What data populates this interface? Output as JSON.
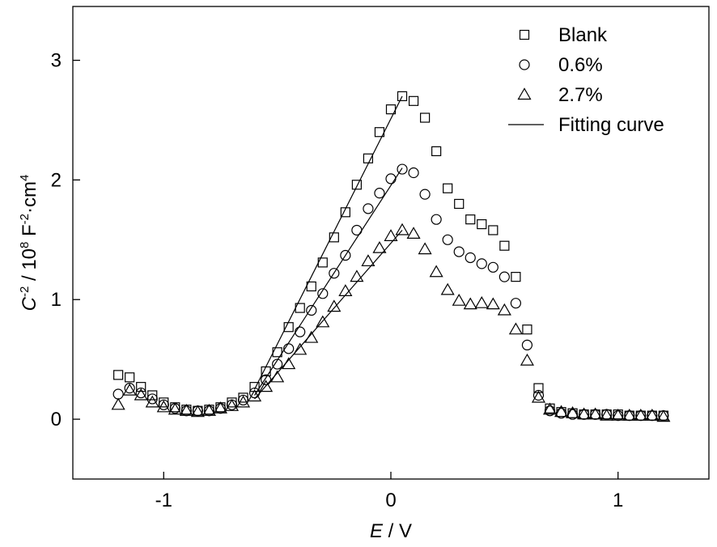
{
  "chart_data": {
    "type": "scatter",
    "title": "",
    "xlabel": {
      "italic": "E",
      "rest": " / V"
    },
    "ylabel": {
      "italic": "C",
      "sup1": "-2",
      "mid": " / 10",
      "sup2": "8",
      "mid2": " F",
      "sup3": "-2",
      "tail": "·cm",
      "sup4": "4"
    },
    "xlim": [
      -1.4,
      1.4
    ],
    "ylim": [
      -0.5,
      3.45
    ],
    "xticks": [
      -1,
      0,
      1
    ],
    "xtick_labels": [
      "-1",
      "0",
      "1"
    ],
    "yticks": [
      0,
      1,
      2,
      3
    ],
    "ytick_labels": [
      "0",
      "1",
      "2",
      "3"
    ],
    "grid": false,
    "legend_position": "top-right",
    "series": [
      {
        "name": "Blank",
        "marker": "square",
        "x": [
          -1.2,
          -1.15,
          -1.1,
          -1.05,
          -1.0,
          -0.95,
          -0.9,
          -0.85,
          -0.8,
          -0.75,
          -0.7,
          -0.65,
          -0.6,
          -0.55,
          -0.5,
          -0.45,
          -0.4,
          -0.35,
          -0.3,
          -0.25,
          -0.2,
          -0.15,
          -0.1,
          -0.05,
          0.0,
          0.05,
          0.1,
          0.15,
          0.2,
          0.25,
          0.3,
          0.35,
          0.4,
          0.45,
          0.5,
          0.55,
          0.6,
          0.65,
          0.7,
          0.75,
          0.8,
          0.85,
          0.9,
          0.95,
          1.0,
          1.05,
          1.1,
          1.15,
          1.2
        ],
        "y": [
          0.37,
          0.35,
          0.27,
          0.2,
          0.14,
          0.1,
          0.08,
          0.07,
          0.08,
          0.1,
          0.14,
          0.18,
          0.27,
          0.4,
          0.56,
          0.77,
          0.93,
          1.11,
          1.31,
          1.52,
          1.73,
          1.96,
          2.18,
          2.4,
          2.59,
          2.7,
          2.66,
          2.52,
          2.24,
          1.93,
          1.8,
          1.67,
          1.63,
          1.58,
          1.45,
          1.19,
          0.75,
          0.26,
          0.09,
          0.06,
          0.05,
          0.04,
          0.04,
          0.04,
          0.04,
          0.03,
          0.03,
          0.03,
          0.03
        ]
      },
      {
        "name": "0.6%",
        "marker": "circle",
        "x": [
          -1.2,
          -1.15,
          -1.1,
          -1.05,
          -1.0,
          -0.95,
          -0.9,
          -0.85,
          -0.8,
          -0.75,
          -0.7,
          -0.65,
          -0.6,
          -0.55,
          -0.5,
          -0.45,
          -0.4,
          -0.35,
          -0.3,
          -0.25,
          -0.2,
          -0.15,
          -0.1,
          -0.05,
          0.0,
          0.05,
          0.1,
          0.15,
          0.2,
          0.25,
          0.3,
          0.35,
          0.4,
          0.45,
          0.5,
          0.55,
          0.6,
          0.65,
          0.7,
          0.75,
          0.8,
          0.85,
          0.9,
          0.95,
          1.0,
          1.05,
          1.1,
          1.15,
          1.2
        ],
        "y": [
          0.21,
          0.26,
          0.22,
          0.17,
          0.12,
          0.09,
          0.07,
          0.07,
          0.07,
          0.09,
          0.12,
          0.16,
          0.22,
          0.33,
          0.46,
          0.59,
          0.73,
          0.91,
          1.05,
          1.22,
          1.37,
          1.58,
          1.76,
          1.89,
          2.01,
          2.09,
          2.06,
          1.88,
          1.67,
          1.5,
          1.4,
          1.35,
          1.3,
          1.27,
          1.19,
          0.97,
          0.62,
          0.2,
          0.07,
          0.05,
          0.04,
          0.04,
          0.04,
          0.04,
          0.03,
          0.03,
          0.03,
          0.03,
          0.03
        ]
      },
      {
        "name": "2.7%",
        "marker": "triangle",
        "x": [
          -1.2,
          -1.15,
          -1.1,
          -1.05,
          -1.0,
          -0.95,
          -0.9,
          -0.85,
          -0.8,
          -0.75,
          -0.7,
          -0.65,
          -0.6,
          -0.55,
          -0.5,
          -0.45,
          -0.4,
          -0.35,
          -0.3,
          -0.25,
          -0.2,
          -0.15,
          -0.1,
          -0.05,
          0.0,
          0.05,
          0.1,
          0.15,
          0.2,
          0.25,
          0.3,
          0.35,
          0.4,
          0.45,
          0.5,
          0.55,
          0.6,
          0.65,
          0.7,
          0.75,
          0.8,
          0.85,
          0.9,
          0.95,
          1.0,
          1.05,
          1.1,
          1.15,
          1.2
        ],
        "y": [
          0.12,
          0.24,
          0.2,
          0.14,
          0.1,
          0.08,
          0.07,
          0.06,
          0.07,
          0.09,
          0.11,
          0.14,
          0.19,
          0.27,
          0.35,
          0.46,
          0.58,
          0.68,
          0.81,
          0.94,
          1.07,
          1.19,
          1.32,
          1.43,
          1.53,
          1.58,
          1.55,
          1.42,
          1.23,
          1.08,
          0.99,
          0.96,
          0.97,
          0.96,
          0.91,
          0.75,
          0.49,
          0.18,
          0.08,
          0.06,
          0.05,
          0.04,
          0.04,
          0.03,
          0.03,
          0.03,
          0.03,
          0.03,
          0.02
        ]
      },
      {
        "name": "Fitting curve",
        "marker": "line",
        "lines": [
          {
            "x": [
              -0.6,
              0.05
            ],
            "y": [
              0.25,
              2.7
            ]
          },
          {
            "x": [
              -0.6,
              0.05
            ],
            "y": [
              0.2,
              2.1
            ]
          },
          {
            "x": [
              -0.6,
              0.05
            ],
            "y": [
              0.17,
              1.58
            ]
          }
        ]
      }
    ]
  }
}
